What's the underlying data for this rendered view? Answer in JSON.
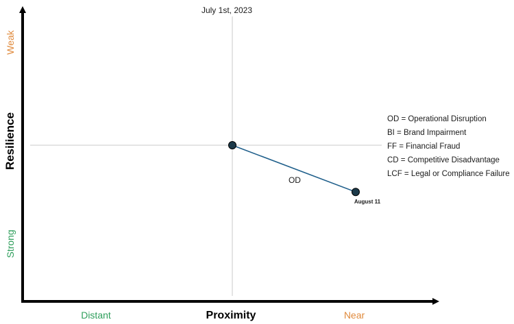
{
  "chart_data": {
    "type": "scatter",
    "title": "",
    "xlabel": "Proximity",
    "ylabel": "Resilience",
    "x_low_label": "Distant",
    "x_high_label": "Near",
    "y_high_label": "Weak",
    "y_low_label": "Strong",
    "reference_line_label": "July 1st, 2023",
    "xlim": [
      -1,
      1
    ],
    "ylim": [
      -1,
      1
    ],
    "grid": false,
    "legend_position": "right",
    "series": [
      {
        "name": "OD",
        "points": [
          {
            "x": 0,
            "y": 0,
            "label": ""
          },
          {
            "x": 0.61,
            "y": -0.31,
            "label": "August 11"
          }
        ]
      }
    ],
    "legend": [
      "OD = Operational Disruption",
      "BI = Brand Impairment",
      "FF = Financial Fraud",
      "CD = Competitive Disadvantage",
      "LCF = Legal or Compliance Failure"
    ],
    "colors": {
      "axis": "#000000",
      "series_line": "#1f5f8b",
      "point_fill": "#1c3a4a",
      "low_label": "#2e9e5b",
      "high_label": "#e08a3c",
      "crosshair": "#c8c8c8"
    }
  }
}
